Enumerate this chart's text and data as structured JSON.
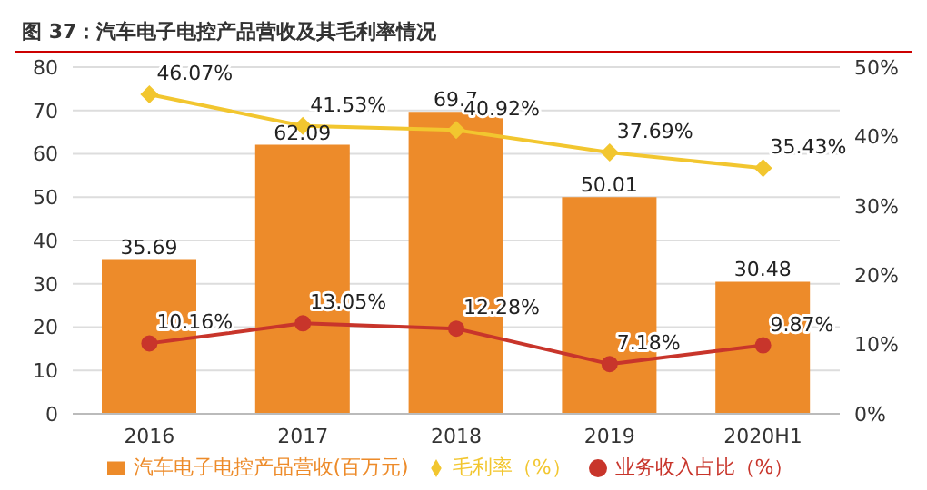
{
  "chart_data": {
    "type": "bar",
    "title": "图 37：汽车电子电控产品营收及其毛利率情况",
    "categories": [
      "2016",
      "2017",
      "2018",
      "2019",
      "2020H1"
    ],
    "series": [
      {
        "name": "汽车电子电控产品营收(百万元)",
        "color": "#ed8b2a",
        "values": [
          35.69,
          62.09,
          69.7,
          50.01,
          30.48
        ],
        "value_labels": [
          "35.69",
          "62.09",
          "69.7",
          "50.01",
          "30.48"
        ]
      },
      {
        "name": "毛利率（%）",
        "type": "line",
        "axis": "y2",
        "color": "#f2c62f",
        "marker": "diamond",
        "values": [
          46.07,
          41.53,
          40.92,
          37.69,
          35.43
        ],
        "value_labels": [
          "46.07%",
          "41.53%",
          "40.92%",
          "37.69%",
          "35.43%"
        ]
      },
      {
        "name": "业务收入占比（%）",
        "type": "line",
        "axis": "y2",
        "color": "#c8352b",
        "marker": "circle",
        "values": [
          10.16,
          13.05,
          12.28,
          7.18,
          9.87
        ],
        "value_labels": [
          "10.16%",
          "13.05%",
          "12.28%",
          "7.18%",
          "9.87%"
        ]
      }
    ],
    "ylim": [
      0,
      80
    ],
    "yticks": [
      0,
      10,
      20,
      30,
      40,
      50,
      60,
      70,
      80
    ],
    "y2lim": [
      0,
      50
    ],
    "y2ticks": [
      {
        "value": 0,
        "label": "0%"
      },
      {
        "value": 10,
        "label": "10%"
      },
      {
        "value": 20,
        "label": "20%"
      },
      {
        "value": 30,
        "label": "30%"
      },
      {
        "value": 40,
        "label": "40%"
      },
      {
        "value": 50,
        "label": "50%"
      }
    ],
    "grid": "y",
    "legend": "bottom"
  }
}
